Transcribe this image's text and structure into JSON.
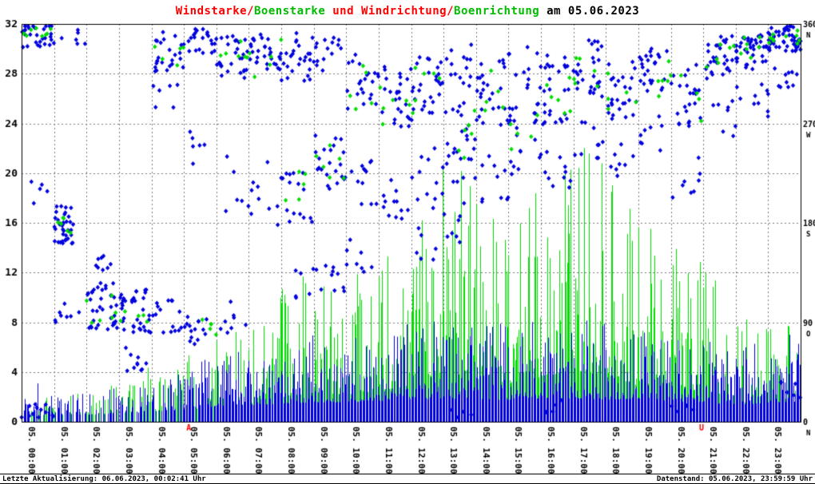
{
  "title": {
    "full": "Windstarke/Boenstarke und Windrichtung/Boenrichtung am 05.06.2023",
    "segments": [
      {
        "text": "Windstarke/",
        "color": "#ff0000"
      },
      {
        "text": "Boenstarke",
        "color": "#00bb00"
      },
      {
        "text": " und ",
        "color": "#ff0000"
      },
      {
        "text": "Windrichtung/",
        "color": "#ff0000"
      },
      {
        "text": "Boenrichtung",
        "color": "#00bb00"
      },
      {
        "text": " am 05.06.2023",
        "color": "#000000"
      }
    ]
  },
  "footer": {
    "last_update": "Letzte Aktualisierung: 06.06.2023, 00:02:41 Uhr",
    "data_state": "Datenstand: 05.06.2023, 23:59:59 Uhr"
  },
  "chart_data": {
    "type": "mixed",
    "title": "Windstarke/Boenstarke und Windrichtung/Boenrichtung am 05.06.2023",
    "date": "05.06.2023",
    "x_labels": [
      "05. 00:00",
      "05. 01:00",
      "05. 02:00",
      "05. 03:00",
      "05. 04:00",
      "05. 05:00",
      "05. 06:00",
      "05. 07:00",
      "05. 08:00",
      "05. 09:00",
      "05. 10:00",
      "05. 11:00",
      "05. 12:00",
      "05. 13:00",
      "05. 14:00",
      "05. 15:00",
      "05. 16:00",
      "05. 17:00",
      "05. 18:00",
      "05. 19:00",
      "05. 20:00",
      "05. 21:00",
      "05. 22:00",
      "05. 23:00"
    ],
    "left_axis": {
      "min": 0,
      "max": 32,
      "ticks": [
        0,
        4,
        8,
        12,
        16,
        20,
        24,
        28,
        32
      ]
    },
    "right_axis": {
      "min": 0,
      "max": 360,
      "ticks": [
        0,
        90,
        180,
        270,
        360
      ],
      "compass": [
        "N",
        "O",
        "S",
        "W",
        "N"
      ]
    },
    "grid": true,
    "legend_position": "none",
    "colors": {
      "wind": "#0000dd",
      "gust": "#00dd00",
      "grid": "#777777",
      "marker": "#ff0000"
    },
    "series_info": [
      {
        "name": "Windstarke",
        "style": "vertical-bars",
        "color": "#0000dd"
      },
      {
        "name": "Boenstarke",
        "style": "vertical-bars",
        "color": "#00dd00"
      },
      {
        "name": "Windrichtung",
        "style": "diamond-scatter",
        "color": "#0000dd"
      },
      {
        "name": "Boenrichtung",
        "style": "diamond-scatter",
        "color": "#00dd00"
      }
    ],
    "series": {
      "wind_speed_hourly_max": [
        4,
        3,
        2.5,
        3,
        3.5,
        4.5,
        5.5,
        6,
        6.5,
        7,
        7,
        7.5,
        8,
        8.5,
        8,
        8,
        8.5,
        8.5,
        8,
        8.5,
        7.5,
        7,
        6,
        7
      ],
      "gust_speed_hourly_max": [
        3,
        3,
        3,
        4,
        4.5,
        5.5,
        6.5,
        8,
        11,
        13,
        12,
        14,
        16,
        23,
        18,
        17,
        20,
        23,
        21,
        16,
        15,
        13,
        9,
        8
      ],
      "bar_density_hourly": [
        0.5,
        0.45,
        0.5,
        0.55,
        0.6,
        0.85,
        1,
        1,
        1,
        1,
        1,
        1,
        1,
        1,
        1,
        1,
        1,
        1,
        1,
        1,
        1,
        1,
        1,
        1
      ]
    },
    "sun_markers": [
      {
        "t": 5.15,
        "label": "A"
      },
      {
        "t": 20.95,
        "label": "U"
      }
    ],
    "direction_points": {
      "wind_dir_clusters": [
        [
          0,
          350,
          12,
          30
        ],
        [
          0,
          8,
          8,
          12
        ],
        [
          0,
          205,
          15,
          5
        ],
        [
          1,
          178,
          18,
          40,
          0.6
        ],
        [
          1,
          95,
          12,
          8
        ],
        [
          1,
          350,
          8,
          6
        ],
        [
          2,
          105,
          22,
          35
        ],
        [
          2,
          140,
          12,
          8
        ],
        [
          3,
          100,
          20,
          35
        ],
        [
          3,
          55,
          12,
          10
        ],
        [
          4,
          335,
          18,
          25
        ],
        [
          4,
          95,
          15,
          15
        ],
        [
          4,
          290,
          15,
          6
        ],
        [
          5,
          345,
          12,
          22
        ],
        [
          5,
          85,
          15,
          15
        ],
        [
          5,
          255,
          25,
          6
        ],
        [
          6,
          330,
          20,
          28
        ],
        [
          6,
          95,
          15,
          8
        ],
        [
          6,
          215,
          25,
          6
        ],
        [
          7,
          335,
          20,
          30
        ],
        [
          7,
          205,
          30,
          10
        ],
        [
          8,
          330,
          22,
          25
        ],
        [
          8,
          205,
          25,
          15
        ],
        [
          8,
          125,
          15,
          6
        ],
        [
          9,
          235,
          25,
          22
        ],
        [
          9,
          330,
          18,
          15
        ],
        [
          9,
          130,
          12,
          10
        ],
        [
          10,
          310,
          28,
          22
        ],
        [
          10,
          215,
          22,
          12
        ],
        [
          10,
          150,
          15,
          8
        ],
        [
          11,
          295,
          32,
          25
        ],
        [
          11,
          205,
          22,
          12
        ],
        [
          12,
          305,
          32,
          28
        ],
        [
          12,
          220,
          28,
          12
        ],
        [
          12,
          160,
          18,
          6
        ],
        [
          13,
          255,
          38,
          26
        ],
        [
          13,
          320,
          22,
          14
        ],
        [
          13,
          180,
          18,
          8
        ],
        [
          13,
          10,
          8,
          4
        ],
        [
          14,
          300,
          32,
          26
        ],
        [
          14,
          220,
          22,
          10
        ],
        [
          15,
          255,
          35,
          24
        ],
        [
          15,
          320,
          22,
          12
        ],
        [
          16,
          300,
          32,
          26
        ],
        [
          16,
          230,
          22,
          10
        ],
        [
          16,
          15,
          8,
          4
        ],
        [
          17,
          320,
          26,
          28
        ],
        [
          17,
          250,
          22,
          10
        ],
        [
          18,
          300,
          26,
          26
        ],
        [
          18,
          230,
          22,
          8
        ],
        [
          19,
          320,
          26,
          26
        ],
        [
          19,
          262,
          20,
          8
        ],
        [
          20,
          295,
          30,
          24
        ],
        [
          20,
          222,
          22,
          8
        ],
        [
          20,
          10,
          8,
          4
        ],
        [
          21,
          330,
          20,
          30
        ],
        [
          21,
          272,
          20,
          8
        ],
        [
          22,
          335,
          16,
          40
        ],
        [
          22,
          292,
          16,
          10
        ],
        [
          23,
          347,
          12,
          55
        ],
        [
          23,
          312,
          12,
          10
        ],
        [
          23,
          28,
          12,
          6
        ]
      ],
      "gust_dir_clusters": [
        [
          0,
          355,
          8,
          8
        ],
        [
          1,
          182,
          12,
          6,
          0.6
        ],
        [
          2,
          102,
          18,
          6
        ],
        [
          3,
          95,
          12,
          5
        ],
        [
          4,
          332,
          12,
          5
        ],
        [
          5,
          88,
          10,
          5
        ],
        [
          6,
          338,
          12,
          6
        ],
        [
          7,
          330,
          18,
          5
        ],
        [
          8,
          210,
          18,
          5
        ],
        [
          9,
          238,
          18,
          6
        ],
        [
          10,
          302,
          22,
          5
        ],
        [
          11,
          282,
          22,
          6
        ],
        [
          12,
          300,
          22,
          6
        ],
        [
          13,
          262,
          28,
          6
        ],
        [
          14,
          300,
          22,
          5
        ],
        [
          15,
          260,
          22,
          5
        ],
        [
          16,
          300,
          22,
          6
        ],
        [
          17,
          320,
          18,
          6
        ],
        [
          18,
          300,
          18,
          5
        ],
        [
          19,
          310,
          18,
          5
        ],
        [
          20,
          292,
          22,
          5
        ],
        [
          21,
          330,
          12,
          6
        ],
        [
          22,
          340,
          12,
          7
        ],
        [
          23,
          350,
          8,
          10
        ]
      ]
    }
  }
}
